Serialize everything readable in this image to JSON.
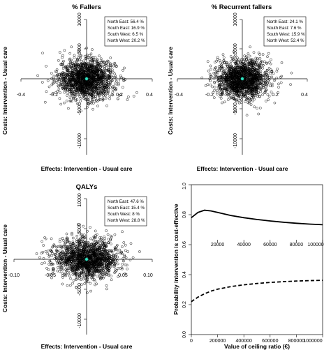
{
  "chart_data": [
    {
      "type": "scatter",
      "title": "% Fallers",
      "xlabel": "Effects: Intervention - Usual care",
      "ylabel": "Costs: Intervention - Usual care",
      "xlim": [
        -0.4,
        0.4
      ],
      "ylim": [
        -10000,
        10000
      ],
      "x_ticks": [
        "-0.4",
        "-0.2",
        "0.2",
        "0.4"
      ],
      "y_ticks": [
        "10000",
        "5000",
        "-5000",
        "-10000"
      ],
      "cloud": {
        "center": [
          0.0,
          0
        ],
        "sd": [
          0.085,
          1650
        ],
        "n": 1600
      },
      "point_estimate": [
        0.0,
        0
      ],
      "legend": [
        "North East: 56.4 %",
        "South East: 16.9 %",
        "South West: 6.5 %",
        "North West: 20.2 %"
      ],
      "legend_position": "top-right"
    },
    {
      "type": "scatter",
      "title": "% Recurrent fallers",
      "xlabel": "Effects: Intervention - Usual care",
      "ylabel": "Costs: Intervention - Usual care",
      "xlim": [
        -0.4,
        0.4
      ],
      "ylim": [
        -10000,
        10000
      ],
      "x_ticks": [
        "-0.4",
        "-0.2",
        "0.2",
        "0.4"
      ],
      "y_ticks": [
        "10000",
        "5000",
        "-5000",
        "-10000"
      ],
      "cloud": {
        "center": [
          0.0,
          0
        ],
        "sd": [
          0.08,
          1650
        ],
        "n": 1600
      },
      "point_estimate": [
        0.0,
        0
      ],
      "legend": [
        "North East: 24.1 %",
        "South East: 7.6 %",
        "South West: 15.9 %",
        "North West: 52.4 %"
      ],
      "legend_position": "top-right"
    },
    {
      "type": "scatter",
      "title": "QALYs",
      "xlabel": "Effects: Intervention - Usual care",
      "ylabel": "Costs: Intervention - Usual care",
      "xlim": [
        -0.1,
        0.1
      ],
      "ylim": [
        -10000,
        10000
      ],
      "x_ticks": [
        "-0.10",
        "-0.05",
        "0.05",
        "0.10"
      ],
      "y_ticks": [
        "10000",
        "5000",
        "-5000",
        "-10000"
      ],
      "cloud": {
        "center": [
          0.0,
          0
        ],
        "sd": [
          0.022,
          1650
        ],
        "n": 1600
      },
      "point_estimate": [
        0.0,
        0
      ],
      "legend": [
        "North East: 47.6 %",
        "South East: 15.4 %",
        "South West: 8 %",
        "North West: 28.8 %"
      ],
      "legend_position": "top-right"
    },
    {
      "type": "line",
      "title": "",
      "xlabel": "Value of ceiling ratio (€)",
      "ylabel": "Probability intervention is cost-effective",
      "xlim": [
        0,
        100000
      ],
      "ylim": [
        0,
        1
      ],
      "x_ticks": [
        "0",
        "200000",
        "400000",
        "600000",
        "800000",
        "1000000"
      ],
      "y_ticks": [
        "0.0",
        "0.2",
        "0.4",
        "0.6",
        "0.8",
        "1.0"
      ],
      "secondary_x_ticks": [
        "20000",
        "40000",
        "60000",
        "80000",
        "100000"
      ],
      "series": [
        {
          "style": "solid",
          "x": [
            0,
            5000,
            10000,
            15000,
            20000,
            30000,
            40000,
            50000,
            60000,
            70000,
            80000,
            90000,
            100000
          ],
          "values": [
            0.78,
            0.815,
            0.83,
            0.825,
            0.815,
            0.795,
            0.78,
            0.768,
            0.758,
            0.75,
            0.743,
            0.737,
            0.733
          ]
        },
        {
          "style": "dashed",
          "x": [
            0,
            5000,
            10000,
            15000,
            20000,
            30000,
            40000,
            50000,
            60000,
            70000,
            80000,
            90000,
            100000
          ],
          "values": [
            0.22,
            0.25,
            0.272,
            0.29,
            0.303,
            0.32,
            0.332,
            0.341,
            0.348,
            0.353,
            0.357,
            0.36,
            0.362
          ]
        }
      ]
    }
  ]
}
